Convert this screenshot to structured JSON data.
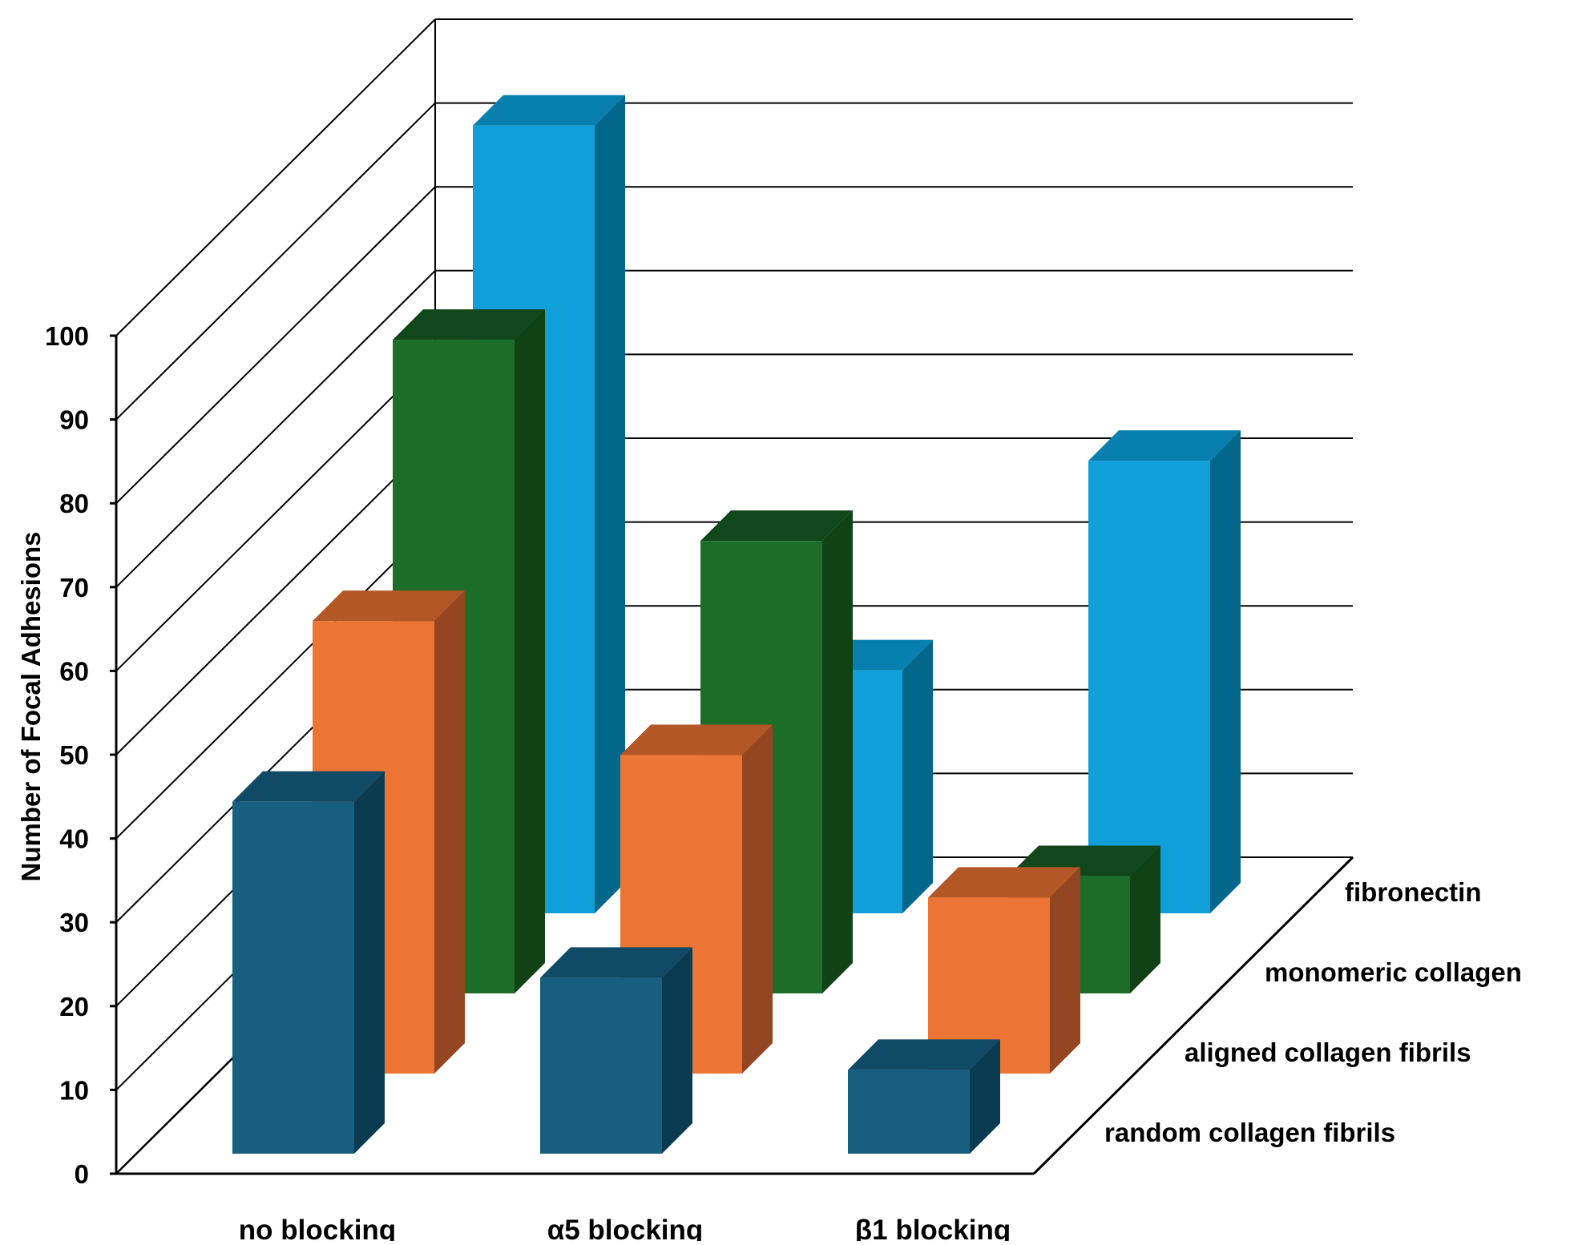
{
  "chart_data": {
    "type": "bar",
    "subtype": "3d-column",
    "ylabel": "Number of Focal Adhesions",
    "ylim": [
      0,
      100
    ],
    "ytick_step": 10,
    "yticks": [
      "0",
      "10",
      "20",
      "30",
      "40",
      "50",
      "60",
      "70",
      "80",
      "90",
      "100"
    ],
    "grid": true,
    "categories": [
      "no blocking",
      "α5 blocking",
      "β1 blocking"
    ],
    "series": [
      {
        "name": "random collagen fibrils",
        "values": [
          42,
          21,
          10
        ],
        "color": "#165F80",
        "side": "#0B3B51",
        "top": "#114A66"
      },
      {
        "name": "aligned collagen fibrils",
        "values": [
          54,
          38,
          21
        ],
        "color": "#EC7535",
        "side": "#944521",
        "top": "#B45726"
      },
      {
        "name": "monomeric collagen",
        "values": [
          78,
          54,
          14
        ],
        "color": "#1C6D28",
        "side": "#104215",
        "top": "#11471A"
      },
      {
        "name": "fibronectin",
        "values": [
          94,
          29,
          54
        ],
        "color": "#109FD8",
        "side": "#03668B",
        "top": "#0780AF"
      }
    ],
    "legend_placement": "right (depth axis labels)"
  }
}
